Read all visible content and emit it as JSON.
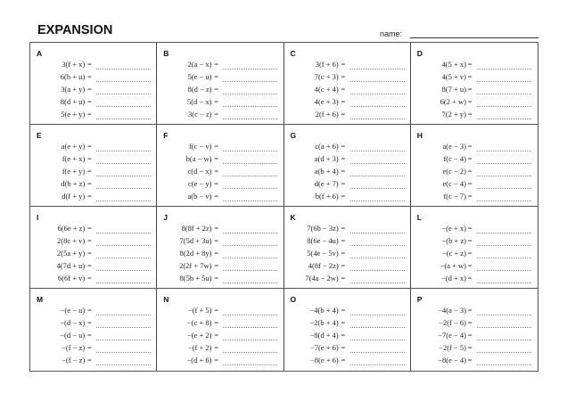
{
  "header": {
    "title": "EXPANSION",
    "name_label": "name:"
  },
  "equals": "=",
  "sections": [
    {
      "letter": "A",
      "items": [
        "3(f + x)",
        "6(b + u)",
        "3(a + y)",
        "8(d + u)",
        "5(e + y)"
      ]
    },
    {
      "letter": "B",
      "items": [
        "2(a − x)",
        "5(e − u)",
        "8(d − z)",
        "5(d − x)",
        "3(c − z)"
      ]
    },
    {
      "letter": "C",
      "items": [
        "3(f + 6)",
        "7(c + 3)",
        "4(c + 4)",
        "4(e + 3)",
        "2(f + 6)"
      ]
    },
    {
      "letter": "D",
      "items": [
        "4(5 + x)",
        "4(5 + v)",
        "8(7 + u)",
        "6(2 + w)",
        "7(2 + y)"
      ]
    },
    {
      "letter": "E",
      "items": [
        "a(e + y)",
        "f(e + x)",
        "f(e + y)",
        "d(b + z)",
        "d(f + y)"
      ]
    },
    {
      "letter": "F",
      "items": [
        "f(c − v)",
        "b(a − w)",
        "c(d − x)",
        "c(e − y)",
        "a(b − v)"
      ]
    },
    {
      "letter": "G",
      "items": [
        "c(a + 6)",
        "a(d + 3)",
        "a(b + 4)",
        "d(e + 7)",
        "b(f + 6)"
      ]
    },
    {
      "letter": "H",
      "items": [
        "a(e − 3)",
        "f(c − 4)",
        "e(c − 2)",
        "e(c − 4)",
        "f(c − 7)"
      ]
    },
    {
      "letter": "I",
      "items": [
        "6(6e + z)",
        "2(8c + v)",
        "2(5a + y)",
        "4(7d + u)",
        "6(6f + v)"
      ]
    },
    {
      "letter": "J",
      "items": [
        "8(8f + 2z)",
        "7(5d + 3u)",
        "8(2d + 8y)",
        "2(2f + 7w)",
        "8(5b + 5u)"
      ]
    },
    {
      "letter": "K",
      "items": [
        "7(6b − 3z)",
        "8(6e − 4u)",
        "5(4e − 5v)",
        "4(8f − 2z)",
        "7(4a − 2w)"
      ]
    },
    {
      "letter": "L",
      "items": [
        "−(e + x)",
        "−(b + z)",
        "−(c + z)",
        "−(a + w)",
        "−(d + x)"
      ]
    },
    {
      "letter": "M",
      "items": [
        "−(e − u)",
        "−(d − x)",
        "−(d − u)",
        "−(f − z)",
        "−(f − z)"
      ]
    },
    {
      "letter": "N",
      "items": [
        "−(f + 5)",
        "−(c + 8)",
        "−(e + 2)",
        "−(f + 2)",
        "−(d + 6)"
      ]
    },
    {
      "letter": "O",
      "items": [
        "−4(b + 4)",
        "−2(b + 4)",
        "−8(d + 4)",
        "−7(e + 6)",
        "−8(e + 6)"
      ]
    },
    {
      "letter": "P",
      "items": [
        "−4(a − 3)",
        "−2(f − 6)",
        "−7(e − 4)",
        "−2(f − 5)",
        "−8(e − 4)"
      ]
    }
  ]
}
